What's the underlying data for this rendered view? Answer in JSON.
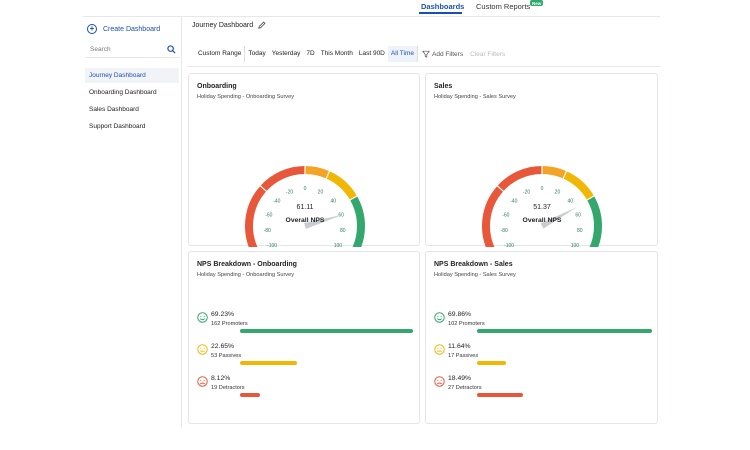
{
  "topnav": {
    "tabs": [
      {
        "label": "Dashboards",
        "active": true
      },
      {
        "label": "Custom Reports",
        "active": false
      }
    ],
    "badge": "New"
  },
  "sidebar": {
    "create_label": "Create Dashboard",
    "search_placeholder": "Search",
    "items": [
      {
        "label": "Journey Dashboard",
        "active": true
      },
      {
        "label": "Onboarding Dashboard",
        "active": false
      },
      {
        "label": "Sales Dashboard",
        "active": false
      },
      {
        "label": "Support Dashboard",
        "active": false
      }
    ]
  },
  "header": {
    "title": "Journey Dashboard"
  },
  "filters": {
    "ranges": [
      "Custom Range",
      "Today",
      "Yesterday",
      "7D",
      "This Month",
      "Last 90D",
      "All Time"
    ],
    "active_range": "All Time",
    "add_label": "Add Filters",
    "clear_label": "Clear Filters"
  },
  "colors": {
    "accent": "#1a4fb8",
    "red": "#e8573a",
    "orange": "#f4a325",
    "yellow": "#f2b705",
    "green": "#34a76f",
    "needle": "#c9ccd1"
  },
  "gauges": [
    {
      "title": "Onboarding",
      "subtitle": "Holiday Spending - Onboarding Survey",
      "value": "61.11",
      "label": "Overall NPS",
      "score": 61.11,
      "ticks": [
        "-100",
        "-80",
        "-60",
        "-40",
        "-20",
        "0",
        "20",
        "40",
        "60",
        "80",
        "100"
      ]
    },
    {
      "title": "Sales",
      "subtitle": "Holiday Spending - Sales Survey",
      "value": "51.37",
      "label": "Overall NPS",
      "score": 51.37,
      "ticks": [
        "-100",
        "-80",
        "-60",
        "-40",
        "-20",
        "0",
        "20",
        "40",
        "60",
        "80",
        "100"
      ]
    }
  ],
  "breakdowns": [
    {
      "title": "NPS Breakdown - Onboarding",
      "subtitle": "Holiday Spending - Onboarding Survey",
      "rows": [
        {
          "pct": "69.23%",
          "count": "162 Promoters",
          "fraction": 0.6923,
          "type": "promoter"
        },
        {
          "pct": "22.65%",
          "count": "53 Passives",
          "fraction": 0.2265,
          "type": "passive"
        },
        {
          "pct": "8.12%",
          "count": "19 Detractors",
          "fraction": 0.0812,
          "type": "detractor"
        }
      ]
    },
    {
      "title": "NPS Breakdown - Sales",
      "subtitle": "Holiday Spending - Sales Survey",
      "rows": [
        {
          "pct": "69.86%",
          "count": "102 Promoters",
          "fraction": 0.6986,
          "type": "promoter"
        },
        {
          "pct": "11.64%",
          "count": "17 Passives",
          "fraction": 0.1164,
          "type": "passive"
        },
        {
          "pct": "18.49%",
          "count": "27 Detractors",
          "fraction": 0.1849,
          "type": "detractor"
        }
      ]
    }
  ]
}
